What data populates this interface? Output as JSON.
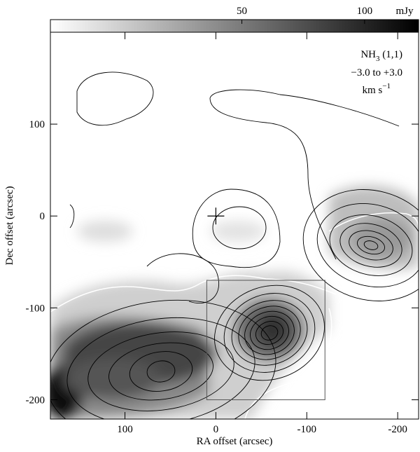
{
  "chart_data": {
    "type": "image",
    "x_label": "RA offset (arcsec)",
    "y_label": "Dec offset (arcsec)",
    "xlim": [
      182,
      -223
    ],
    "ylim": [
      -221,
      200
    ],
    "xticks": [
      100,
      0,
      -100,
      -200
    ],
    "yticks": [
      100,
      0,
      -100,
      -200
    ],
    "colorbar": {
      "lim": [
        -28,
        122
      ],
      "ticks": [
        50,
        100
      ],
      "unit": "mJy"
    },
    "annotation": {
      "species": "NH",
      "subscript": "3",
      "transition": " (1,1)",
      "velocity": "−3.0 to +3.0",
      "unit": "km s",
      "unit_power": "−1"
    },
    "marker": {
      "x": 0,
      "y": 0
    },
    "box": {
      "x": [
        10,
        -120
      ],
      "y": [
        -70,
        -200
      ]
    }
  }
}
